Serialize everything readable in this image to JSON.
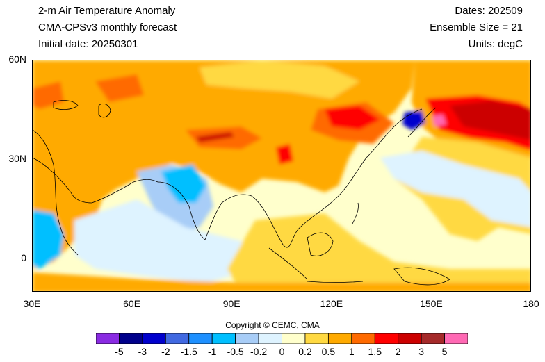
{
  "header": {
    "title": "2-m Air Temperature Anomaly",
    "model": "CMA-CPSv3 monthly forecast",
    "init": "Initial date: 20250301",
    "dates": "Dates: 202509",
    "ensemble": "Ensemble Size = 21",
    "units": "Units: degC"
  },
  "axes": {
    "y_ticks": [
      {
        "label": "60N",
        "value": 60
      },
      {
        "label": "30N",
        "value": 30
      },
      {
        "label": "0",
        "value": 0
      }
    ],
    "x_ticks": [
      {
        "label": "30E",
        "value": 30
      },
      {
        "label": "60E",
        "value": 60
      },
      {
        "label": "90E",
        "value": 90
      },
      {
        "label": "120E",
        "value": 120
      },
      {
        "label": "150E",
        "value": 150
      },
      {
        "label": "180",
        "value": 180
      }
    ],
    "lon_range": [
      30,
      180
    ],
    "lat_range": [
      -10,
      60
    ]
  },
  "copyright": "Copyright © CEMC, CMA",
  "colorbar": {
    "labels": [
      "-5",
      "-3",
      "-2",
      "-1.5",
      "-1",
      "-0.5",
      "-0.2",
      "0",
      "0.2",
      "0.5",
      "1",
      "1.5",
      "2",
      "3",
      "5"
    ],
    "colors": [
      "#8a2be2",
      "#00008b",
      "#0000cd",
      "#4169e1",
      "#1e90ff",
      "#00bfff",
      "#a8cdf7",
      "#def3ff",
      "#ffffcc",
      "#ffd942",
      "#ffaa00",
      "#ff6a00",
      "#ff0000",
      "#cc0000",
      "#a52a2a",
      "#ff69b4"
    ]
  },
  "colors": {
    "ocean_neutral": "#ffffcc",
    "warm_orange": "#ffaa00",
    "warm_yellow": "#ffd942",
    "cool_pale": "#def3ff",
    "cool_light": "#a8cdf7",
    "cool_blue": "#00bfff",
    "red": "#ff0000",
    "dark_red": "#cc0000",
    "pink": "#ff69b4",
    "deep_blue": "#0000cd"
  }
}
